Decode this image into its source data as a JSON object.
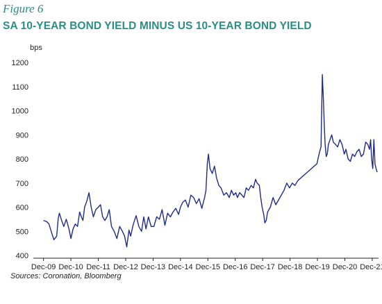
{
  "figure_label": "Figure 6",
  "source": "Sources: Coronation, Bloomberg",
  "colors": {
    "title": "#2a8e84",
    "line": "#1f2a8a",
    "axis": "#222222"
  },
  "chart_data": {
    "type": "line",
    "title": "SA 10-YEAR BOND YIELD MINUS US 10-YEAR BOND YIELD",
    "ylabel": "bps",
    "xlabel": "",
    "ylim": [
      400,
      1200
    ],
    "yticks": [
      400,
      500,
      600,
      700,
      800,
      900,
      1000,
      1100,
      1200
    ],
    "xticks": [
      "Dec-09",
      "Dec-10",
      "Dec-11",
      "Dec-12",
      "Dec-13",
      "Dec-14",
      "Dec-15",
      "Dec-16",
      "Dec-17",
      "Dec-18",
      "Dec-19",
      "Dec-20",
      "Dec-21"
    ],
    "grid": false,
    "series": [
      {
        "x": [
          2009.92,
          2010.04,
          2010.12,
          2010.2,
          2010.3,
          2010.4,
          2010.46,
          2010.5,
          2010.58,
          2010.66,
          2010.75,
          2010.85,
          2010.92,
          2011.0,
          2011.08,
          2011.16,
          2011.24,
          2011.3,
          2011.36,
          2011.42,
          2011.5,
          2011.58,
          2011.66,
          2011.74,
          2011.83,
          2011.92,
          2012.0,
          2012.08,
          2012.16,
          2012.24,
          2012.32,
          2012.4,
          2012.5,
          2012.6,
          2012.7,
          2012.8,
          2012.88,
          2012.96,
          2013.04,
          2013.1,
          2013.2,
          2013.3,
          2013.4,
          2013.5,
          2013.58,
          2013.66,
          2013.75,
          2013.85,
          2013.95,
          2014.05,
          2014.15,
          2014.25,
          2014.35,
          2014.45,
          2014.55,
          2014.65,
          2014.75,
          2014.85,
          2014.92,
          2015.0,
          2015.1,
          2015.2,
          2015.3,
          2015.4,
          2015.5,
          2015.6,
          2015.7,
          2015.8,
          2015.85,
          2015.9,
          2015.94,
          2016.0,
          2016.08,
          2016.16,
          2016.24,
          2016.32,
          2016.4,
          2016.5,
          2016.6,
          2016.7,
          2016.78,
          2016.86,
          2016.94,
          2017.0,
          2017.08,
          2017.16,
          2017.24,
          2017.32,
          2017.4,
          2017.5,
          2017.58,
          2017.66,
          2017.72,
          2017.76,
          2017.8,
          2017.85,
          2017.9,
          2017.96,
          2018.0,
          2018.05,
          2018.1,
          2018.2,
          2018.3,
          2018.4,
          2018.5,
          2018.6,
          2018.7,
          2018.8,
          2018.9,
          2019.0,
          2019.1,
          2019.2,
          2019.3,
          2019.4,
          2019.5,
          2019.6,
          2019.7,
          2019.8,
          2019.9,
          2019.96,
          2020.0,
          2020.05,
          2020.1,
          2020.14,
          2020.17,
          2020.2,
          2020.24,
          2020.28,
          2020.32,
          2020.38,
          2020.44,
          2020.5,
          2020.58,
          2020.66,
          2020.74,
          2020.82,
          2020.9,
          2020.96,
          2021.04,
          2021.12,
          2021.2,
          2021.28,
          2021.36,
          2021.44,
          2021.52,
          2021.6,
          2021.68,
          2021.76,
          2021.82,
          2021.86,
          2021.9,
          2021.94,
          2021.98,
          2022.02,
          2022.06,
          2022.1
        ],
        "y": [
          545,
          540,
          530,
          500,
          465,
          480,
          555,
          575,
          545,
          520,
          550,
          510,
          470,
          510,
          530,
          520,
          580,
          560,
          545,
          600,
          625,
          660,
          600,
          560,
          590,
          600,
          610,
          560,
          545,
          560,
          590,
          520,
          500,
          470,
          520,
          500,
          480,
          435,
          505,
          480,
          530,
          565,
          520,
          500,
          560,
          510,
          560,
          520,
          520,
          560,
          550,
          590,
          525,
          575,
          560,
          580,
          595,
          570,
          600,
          620,
          630,
          600,
          650,
          640,
          615,
          635,
          595,
          640,
          670,
          780,
          820,
          760,
          740,
          770,
          720,
          690,
          680,
          650,
          660,
          640,
          670,
          650,
          660,
          640,
          660,
          650,
          640,
          680,
          670,
          690,
          680,
          715,
          700,
          695,
          690,
          640,
          600,
          570,
          535,
          545,
          580,
          600,
          640,
          610,
          630,
          650,
          670,
          700,
          680,
          700,
          690,
          710,
          720,
          730,
          740,
          750,
          760,
          770,
          780,
          810,
          830,
          850,
          1150,
          1040,
          940,
          860,
          810,
          820,
          860,
          880,
          900,
          870,
          860,
          850,
          880,
          860,
          820,
          840,
          800,
          790,
          820,
          810,
          830,
          840,
          810,
          820,
          870,
          860,
          840,
          880,
          800,
          760,
          880,
          780,
          760,
          745
        ]
      }
    ]
  }
}
